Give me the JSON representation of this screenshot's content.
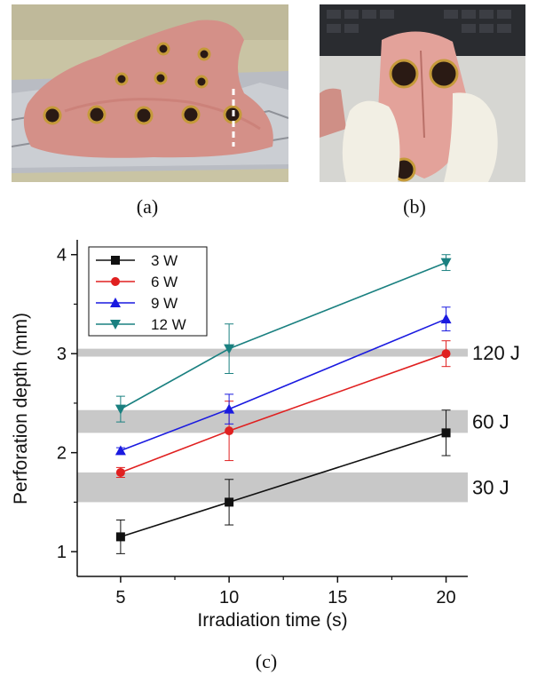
{
  "panels": {
    "a": "(a)",
    "b": "(b)",
    "c": "(c)"
  },
  "colors": {
    "3W": "#111111",
    "6W": "#e02020",
    "9W": "#1a1ae0",
    "12W": "#1a8080",
    "band": "#c8c8c8"
  },
  "chart_data": {
    "type": "line",
    "xlabel": "Irradiation time (s)",
    "ylabel": "Perforation depth (mm)",
    "xlim": [
      3,
      21
    ],
    "ylim": [
      0.75,
      4.15
    ],
    "x_ticks": [
      5,
      10,
      15,
      20
    ],
    "y_ticks": [
      1,
      2,
      3,
      4
    ],
    "legend_position": "top-left",
    "series": [
      {
        "name": "3 W",
        "marker": "square",
        "color": "#111111",
        "x": [
          5,
          10,
          20
        ],
        "y": [
          1.15,
          1.5,
          2.2
        ],
        "err": [
          0.17,
          0.23,
          0.23
        ]
      },
      {
        "name": "6 W",
        "marker": "circle",
        "color": "#e02020",
        "x": [
          5,
          10,
          20
        ],
        "y": [
          1.8,
          2.22,
          3.0
        ],
        "err": [
          0.05,
          0.3,
          0.13
        ]
      },
      {
        "name": "9 W",
        "marker": "triangle-up",
        "color": "#1a1ae0",
        "x": [
          5,
          10,
          20
        ],
        "y": [
          2.02,
          2.44,
          3.35
        ],
        "err": [
          0.03,
          0.15,
          0.12
        ]
      },
      {
        "name": "12 W",
        "marker": "triangle-down",
        "color": "#1a8080",
        "x": [
          5,
          10,
          20
        ],
        "y": [
          2.44,
          3.05,
          3.92
        ],
        "err": [
          0.13,
          0.25,
          0.08
        ]
      }
    ],
    "bands": [
      {
        "label": "120 J",
        "y_min": 2.97,
        "y_max": 3.05
      },
      {
        "label": "60 J",
        "y_min": 2.2,
        "y_max": 2.43
      },
      {
        "label": "30 J",
        "y_min": 1.5,
        "y_max": 1.8
      }
    ]
  }
}
